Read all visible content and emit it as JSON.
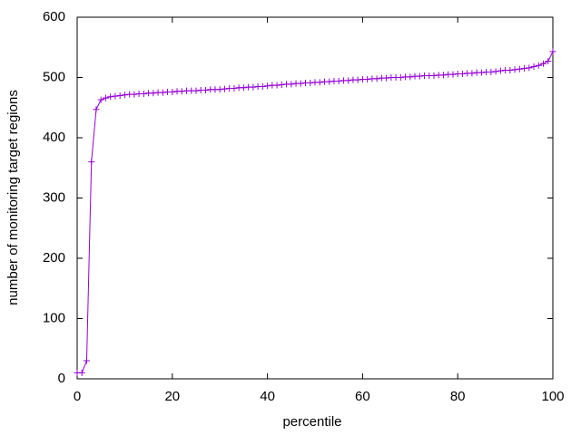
{
  "chart_data": {
    "type": "line",
    "xlabel": "percentile",
    "ylabel": "number of monitoring target regions",
    "x": [
      0,
      1,
      2,
      3,
      4,
      5,
      6,
      7,
      8,
      9,
      10,
      11,
      12,
      13,
      14,
      15,
      16,
      17,
      18,
      19,
      20,
      21,
      22,
      23,
      24,
      25,
      26,
      27,
      28,
      29,
      30,
      31,
      32,
      33,
      34,
      35,
      36,
      37,
      38,
      39,
      40,
      41,
      42,
      43,
      44,
      45,
      46,
      47,
      48,
      49,
      50,
      51,
      52,
      53,
      54,
      55,
      56,
      57,
      58,
      59,
      60,
      61,
      62,
      63,
      64,
      65,
      66,
      67,
      68,
      69,
      70,
      71,
      72,
      73,
      74,
      75,
      76,
      77,
      78,
      79,
      80,
      81,
      82,
      83,
      84,
      85,
      86,
      87,
      88,
      89,
      90,
      91,
      92,
      93,
      94,
      95,
      96,
      97,
      98,
      99,
      100
    ],
    "series": [
      {
        "color": "#9400d3",
        "marker": "+",
        "values": [
          10,
          10,
          30,
          360,
          447,
          463,
          466,
          468,
          469,
          470,
          471,
          472,
          472,
          473,
          473,
          474,
          474,
          475,
          475,
          476,
          476,
          477,
          477,
          478,
          478,
          478,
          479,
          479,
          480,
          480,
          480,
          481,
          482,
          482,
          483,
          483,
          484,
          484,
          485,
          485,
          486,
          487,
          487,
          488,
          489,
          489,
          490,
          490,
          491,
          491,
          492,
          492,
          493,
          493,
          494,
          494,
          495,
          495,
          496,
          496,
          497,
          497,
          498,
          498,
          499,
          499,
          500,
          500,
          500,
          501,
          501,
          502,
          502,
          503,
          503,
          503,
          504,
          504,
          505,
          505,
          506,
          506,
          507,
          507,
          508,
          508,
          509,
          509,
          510,
          511,
          512,
          512,
          513,
          514,
          515,
          516,
          518,
          520,
          523,
          527,
          543
        ]
      }
    ],
    "xlim": [
      0,
      100
    ],
    "xticks": [
      0,
      20,
      40,
      60,
      80,
      100
    ],
    "ylim": [
      0,
      600
    ],
    "yticks": [
      0,
      100,
      200,
      300,
      400,
      500,
      600
    ]
  }
}
